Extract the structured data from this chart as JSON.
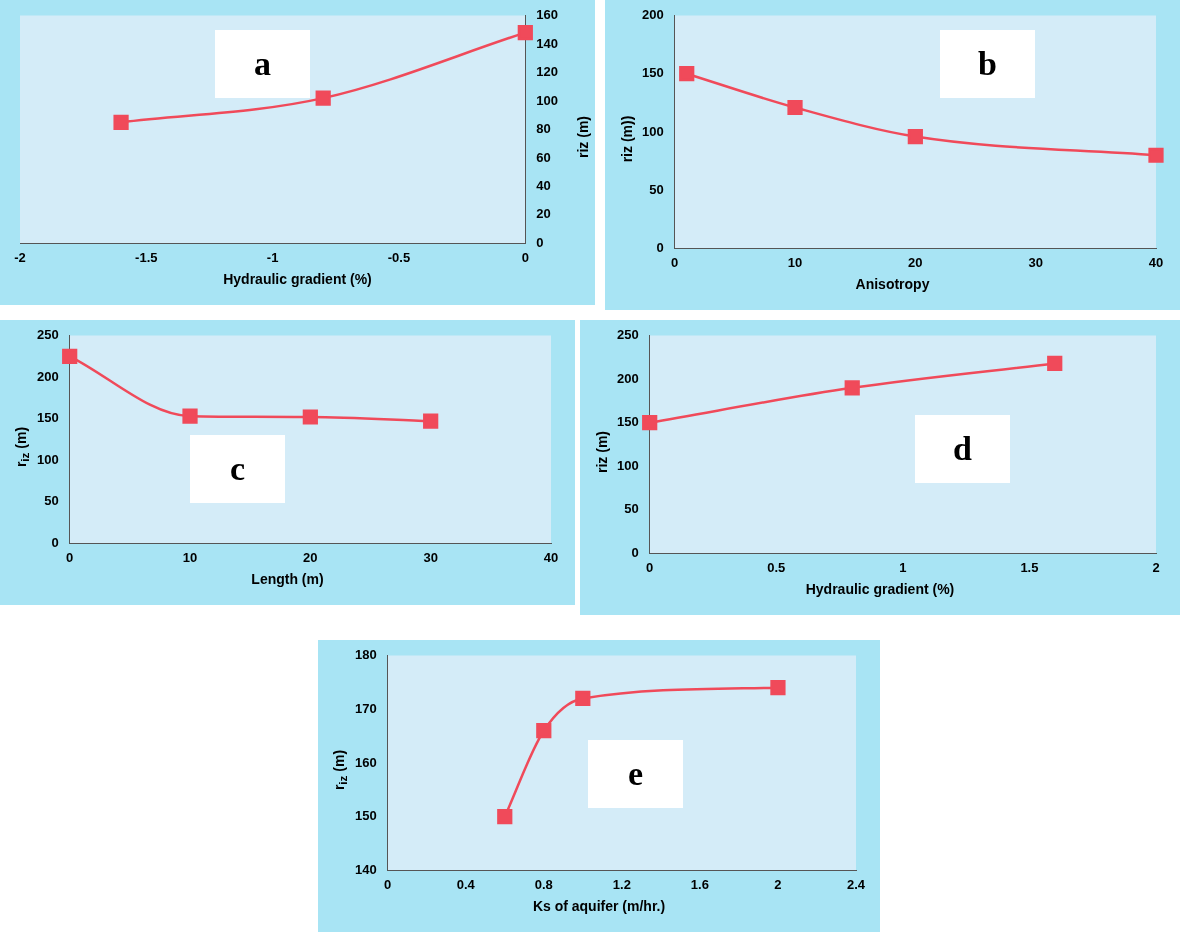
{
  "chart_data": [
    {
      "type": "line",
      "xlabel": "Hydraulic gradient (%)",
      "y2label": "riz (m)",
      "annotations": [
        "a"
      ],
      "x": [
        -1.6,
        -0.8,
        0
      ],
      "series": [
        {
          "color": "#f04a5a",
          "values": [
            85,
            102,
            148
          ],
          "axis": "y2"
        }
      ],
      "xlim": [
        -2,
        0
      ],
      "xticks": [
        -2,
        -1.5,
        -1,
        -0.5,
        0
      ],
      "y2lim": [
        0,
        160
      ],
      "y2ticks": [
        0,
        20,
        40,
        60,
        80,
        100,
        120,
        140,
        160
      ],
      "marker": "square",
      "legend": false,
      "grid": false
    },
    {
      "type": "line",
      "xlabel": "Anisotropy",
      "ylabel": "riz (m))",
      "annotations": [
        "b"
      ],
      "x": [
        1,
        10,
        20,
        40
      ],
      "series": [
        {
          "color": "#f04a5a",
          "values": [
            150,
            121,
            96,
            80
          ]
        }
      ],
      "xlim": [
        0,
        40
      ],
      "xticks": [
        0,
        10,
        20,
        30,
        40
      ],
      "ylim": [
        0,
        200
      ],
      "yticks": [
        0,
        50,
        100,
        150,
        200
      ],
      "marker": "square",
      "legend": false,
      "grid": false
    },
    {
      "type": "line",
      "xlabel": "Length (m)",
      "ylabel": "r$_{iz}$  (m)",
      "annotations": [
        "c"
      ],
      "x": [
        0,
        10,
        20,
        30
      ],
      "series": [
        {
          "color": "#f04a5a",
          "values": [
            225,
            153,
            152,
            147
          ]
        }
      ],
      "xlim": [
        0,
        40
      ],
      "xticks": [
        0,
        10,
        20,
        30,
        40
      ],
      "ylim": [
        0,
        250
      ],
      "yticks": [
        0,
        50,
        100,
        150,
        200,
        250
      ],
      "marker": "square",
      "legend": false,
      "grid": false
    },
    {
      "type": "line",
      "xlabel": "Hydraulic gradient (%)",
      "ylabel": "riz (m)",
      "annotations": [
        "d"
      ],
      "x": [
        0,
        0.8,
        1.6
      ],
      "series": [
        {
          "color": "#f04a5a",
          "values": [
            150,
            190,
            218
          ]
        }
      ],
      "xlim": [
        0,
        2
      ],
      "xticks": [
        0,
        0.5,
        1,
        1.5,
        2
      ],
      "ylim": [
        0,
        250
      ],
      "yticks": [
        0,
        50,
        100,
        150,
        200,
        250
      ],
      "marker": "square",
      "legend": false,
      "grid": false
    },
    {
      "type": "line",
      "xlabel": "Ks of aquifer (m/hr.)",
      "ylabel": "r$_{iz}$ (m)",
      "annotations": [
        "e"
      ],
      "x": [
        0.6,
        0.8,
        1.0,
        2.0
      ],
      "series": [
        {
          "color": "#f04a5a",
          "values": [
            150,
            166,
            172,
            174
          ]
        }
      ],
      "xlim": [
        0,
        2.4
      ],
      "xticks": [
        0,
        0.4,
        0.8,
        1.2,
        1.6,
        2,
        2.4
      ],
      "ylim": [
        140,
        180
      ],
      "yticks": [
        140,
        150,
        160,
        170,
        180
      ],
      "marker": "square",
      "legend": false,
      "grid": false
    }
  ]
}
